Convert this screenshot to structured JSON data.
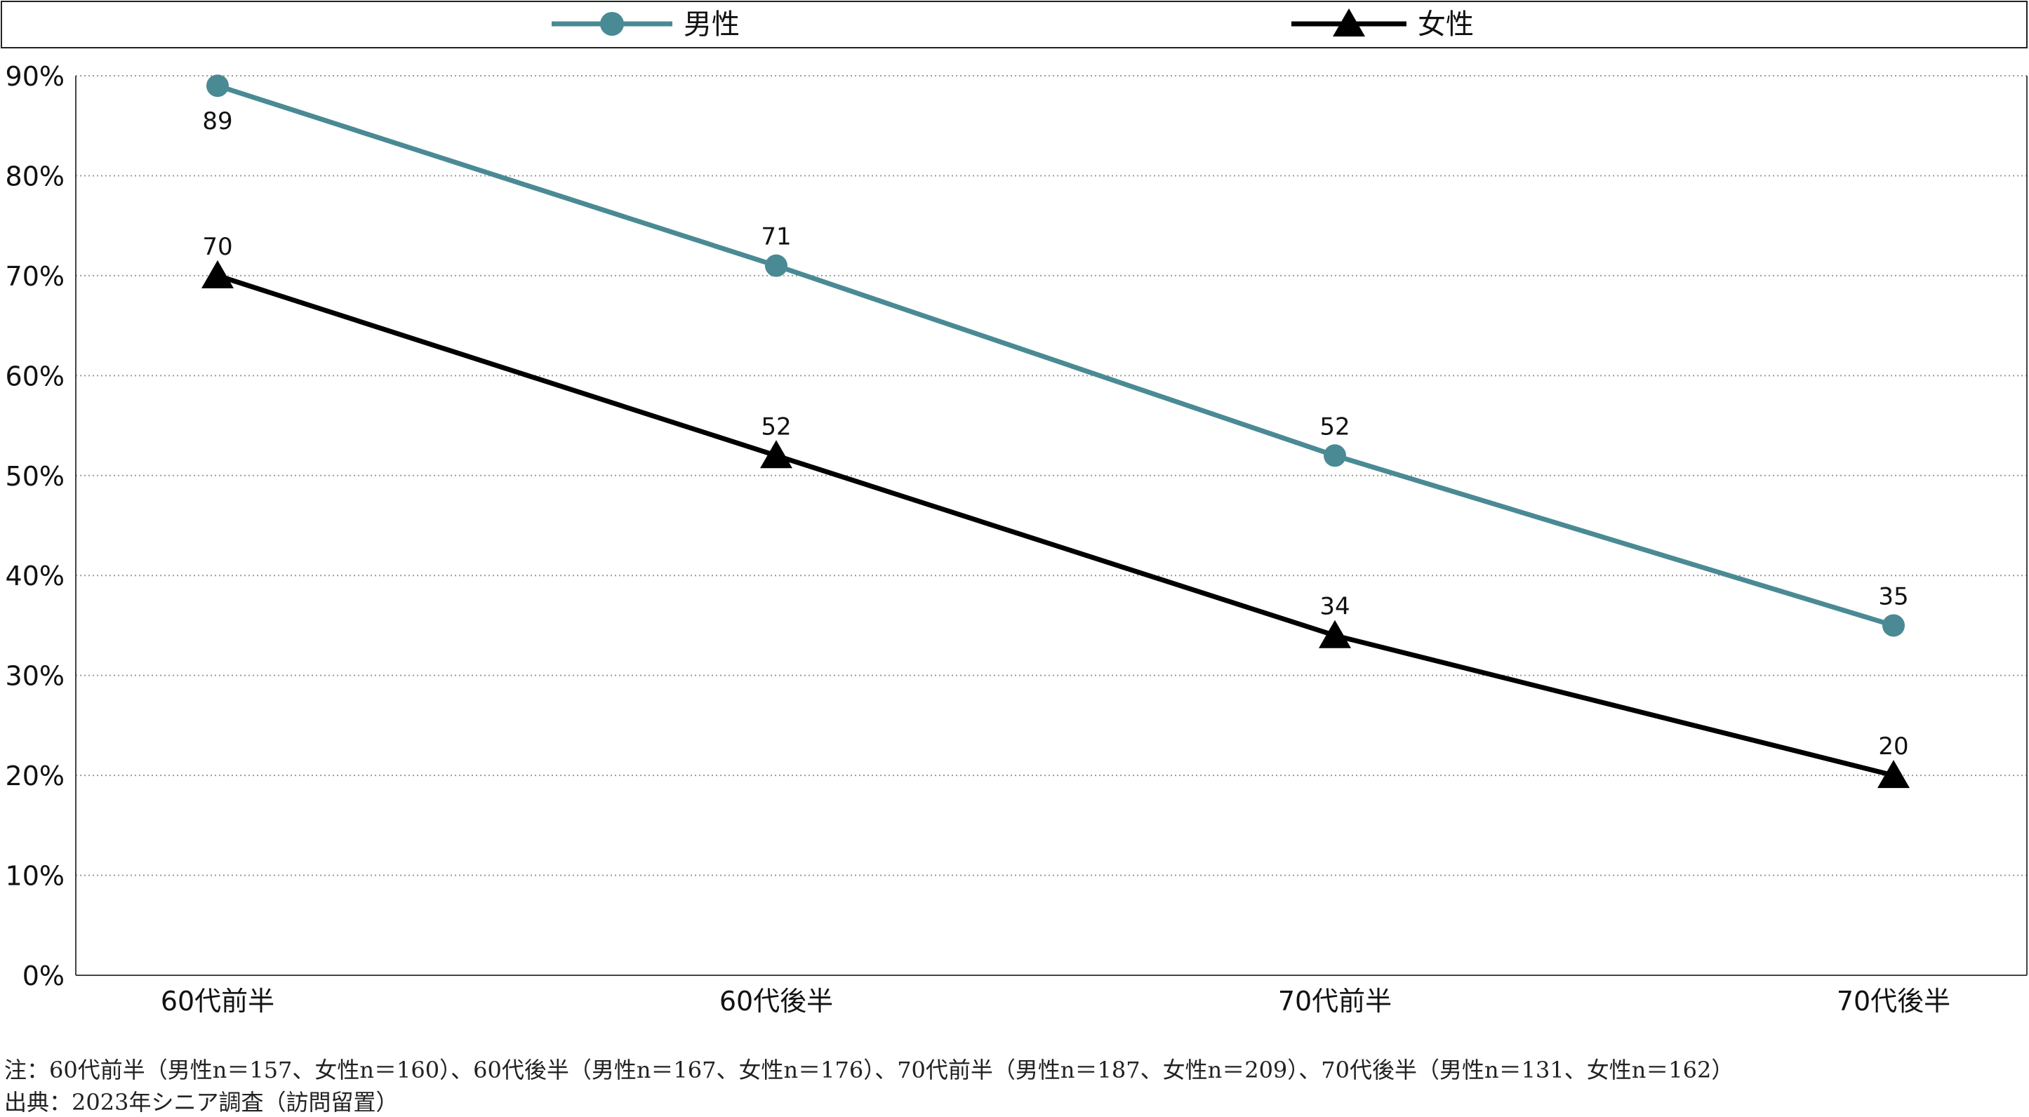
{
  "chart_data": {
    "type": "line",
    "categories": [
      "60代前半",
      "60代後半",
      "70代前半",
      "70代後半"
    ],
    "series": [
      {
        "name": "男性",
        "values": [
          89,
          71,
          52,
          35
        ],
        "color": "#4a8a94",
        "marker": "circle"
      },
      {
        "name": "女性",
        "values": [
          70,
          52,
          34,
          20
        ],
        "color": "#000000",
        "marker": "triangle"
      }
    ],
    "ylim": [
      0,
      90
    ],
    "yticks": [
      0,
      10,
      20,
      30,
      40,
      50,
      60,
      70,
      80,
      90
    ],
    "ytick_labels": [
      "0%",
      "10%",
      "20%",
      "30%",
      "40%",
      "50%",
      "60%",
      "70%",
      "80%",
      "90%"
    ],
    "grid": "horizontal dotted",
    "legend_position": "top",
    "title": "",
    "xlabel": "",
    "ylabel": ""
  },
  "notes": {
    "note": "注：60代前半（男性n＝157、女性n＝160）、60代後半（男性n＝167、女性n＝176）、70代前半（男性n＝187、女性n＝209）、70代後半（男性n＝131、女性n＝162）",
    "source": "出典：2023年シニア調査（訪問留置）"
  }
}
